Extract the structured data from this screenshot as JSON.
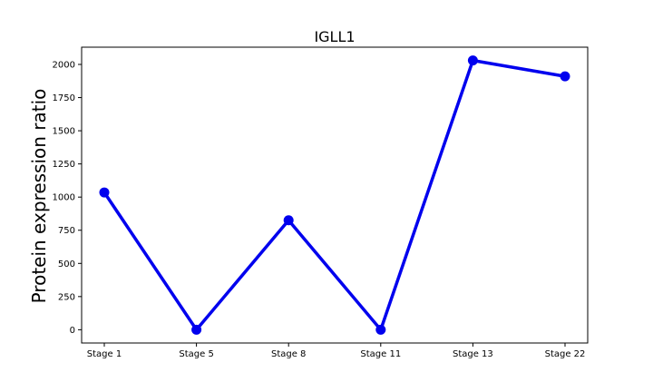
{
  "chart_data": {
    "type": "line",
    "title": "IGLL1",
    "xlabel": "",
    "ylabel": "Protein expression ratio",
    "categories": [
      "Stage 1",
      "Stage 5",
      "Stage 8",
      "Stage 11",
      "Stage 13",
      "Stage 22"
    ],
    "series": [
      {
        "values": [
          1035,
          0,
          825,
          0,
          2030,
          1910
        ],
        "color": "#0000ee"
      }
    ],
    "ylim": [
      -100,
      2130
    ],
    "yticks": [
      0,
      250,
      500,
      750,
      1000,
      1250,
      1500,
      1750,
      2000
    ],
    "grid": false,
    "legend": "none"
  }
}
